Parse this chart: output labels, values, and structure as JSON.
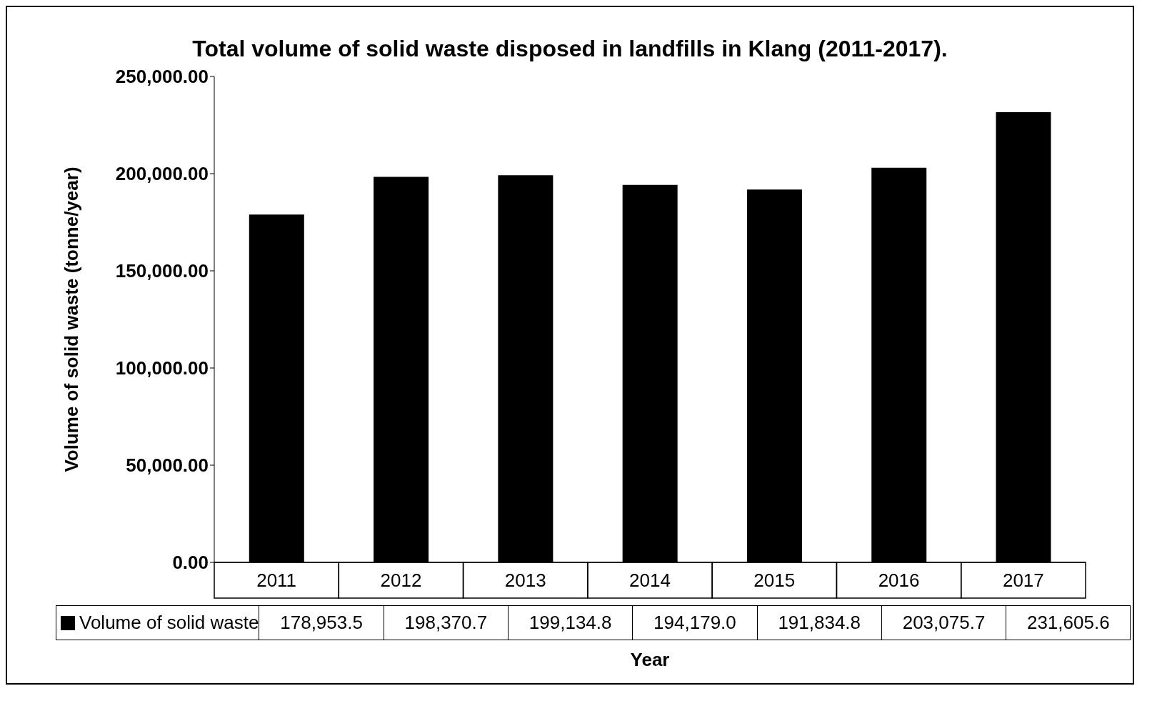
{
  "chart_data": {
    "type": "bar",
    "title": "Total volume of solid waste disposed in landfills in Klang (2011-2017).",
    "xlabel": "Year",
    "ylabel": "Volume of solid waste (tonne/year)",
    "categories": [
      "2011",
      "2012",
      "2013",
      "2014",
      "2015",
      "2016",
      "2017"
    ],
    "series": [
      {
        "name": "Volume of solid waste",
        "color": "#000000",
        "values": [
          178953.5,
          198370.7,
          199134.8,
          194179.0,
          191834.8,
          203075.7,
          231605.6
        ],
        "value_labels": [
          "178,953.5",
          "198,370.7",
          "199,134.8",
          "194,179.0",
          "191,834.8",
          "203,075.7",
          "231,605.6"
        ]
      }
    ],
    "ylim": [
      0,
      250000
    ],
    "yticks": [
      {
        "value": 0,
        "label": "0.00"
      },
      {
        "value": 50000,
        "label": "50,000.00"
      },
      {
        "value": 100000,
        "label": "100,000.00"
      },
      {
        "value": 150000,
        "label": "150,000.00"
      },
      {
        "value": 200000,
        "label": "200,000.00"
      },
      {
        "value": 250000,
        "label": "250,000.00"
      }
    ],
    "legend": "bottom"
  }
}
